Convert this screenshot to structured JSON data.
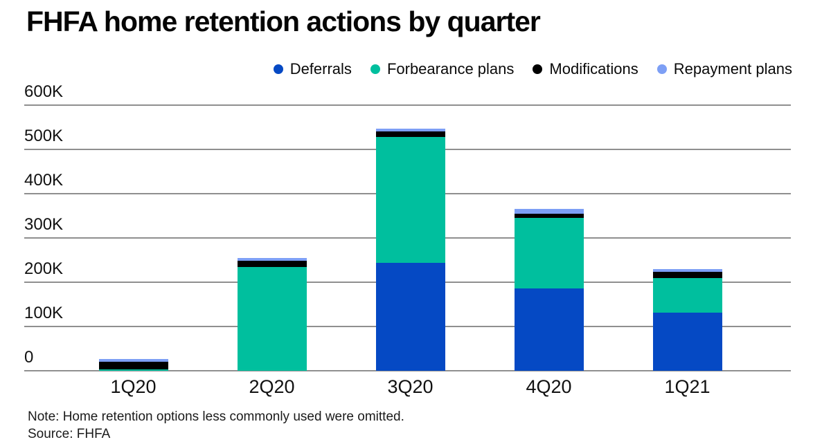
{
  "title": "FHFA home retention actions by quarter",
  "legend": [
    {
      "label": "Deferrals",
      "color": "#0549c4"
    },
    {
      "label": "Forbearance plans",
      "color": "#00bf9e"
    },
    {
      "label": "Modifications",
      "color": "#000000"
    },
    {
      "label": "Repayment plans",
      "color": "#7d9ff5"
    }
  ],
  "chart_data": {
    "type": "bar",
    "stacked": true,
    "title": "FHFA home retention actions by quarter",
    "categories": [
      "1Q20",
      "2Q20",
      "3Q20",
      "4Q20",
      "1Q21"
    ],
    "series": [
      {
        "name": "Deferrals",
        "color": "#0549c4",
        "values": [
          0,
          0,
          244000,
          186000,
          132000
        ]
      },
      {
        "name": "Forbearance plans",
        "color": "#00bf9e",
        "values": [
          3000,
          234000,
          284000,
          159000,
          78000
        ]
      },
      {
        "name": "Modifications",
        "color": "#000000",
        "values": [
          17000,
          14000,
          13000,
          9000,
          14000
        ]
      },
      {
        "name": "Repayment plans",
        "color": "#7d9ff5",
        "values": [
          7000,
          6000,
          6000,
          11000,
          5000
        ]
      }
    ],
    "totals": [
      27000,
      254000,
      547000,
      365000,
      229000
    ],
    "xlabel": "",
    "ylabel": "",
    "ylim": [
      0,
      600000
    ],
    "ytick_interval": 100000,
    "ytick_labels": [
      "0",
      "100K",
      "200K",
      "300K",
      "400K",
      "500K",
      "600K"
    ],
    "grid": true,
    "legend_position": "top-right"
  },
  "footnote": {
    "note": "Note: Home retention options less commonly used were omitted.",
    "source": "Source: FHFA"
  }
}
